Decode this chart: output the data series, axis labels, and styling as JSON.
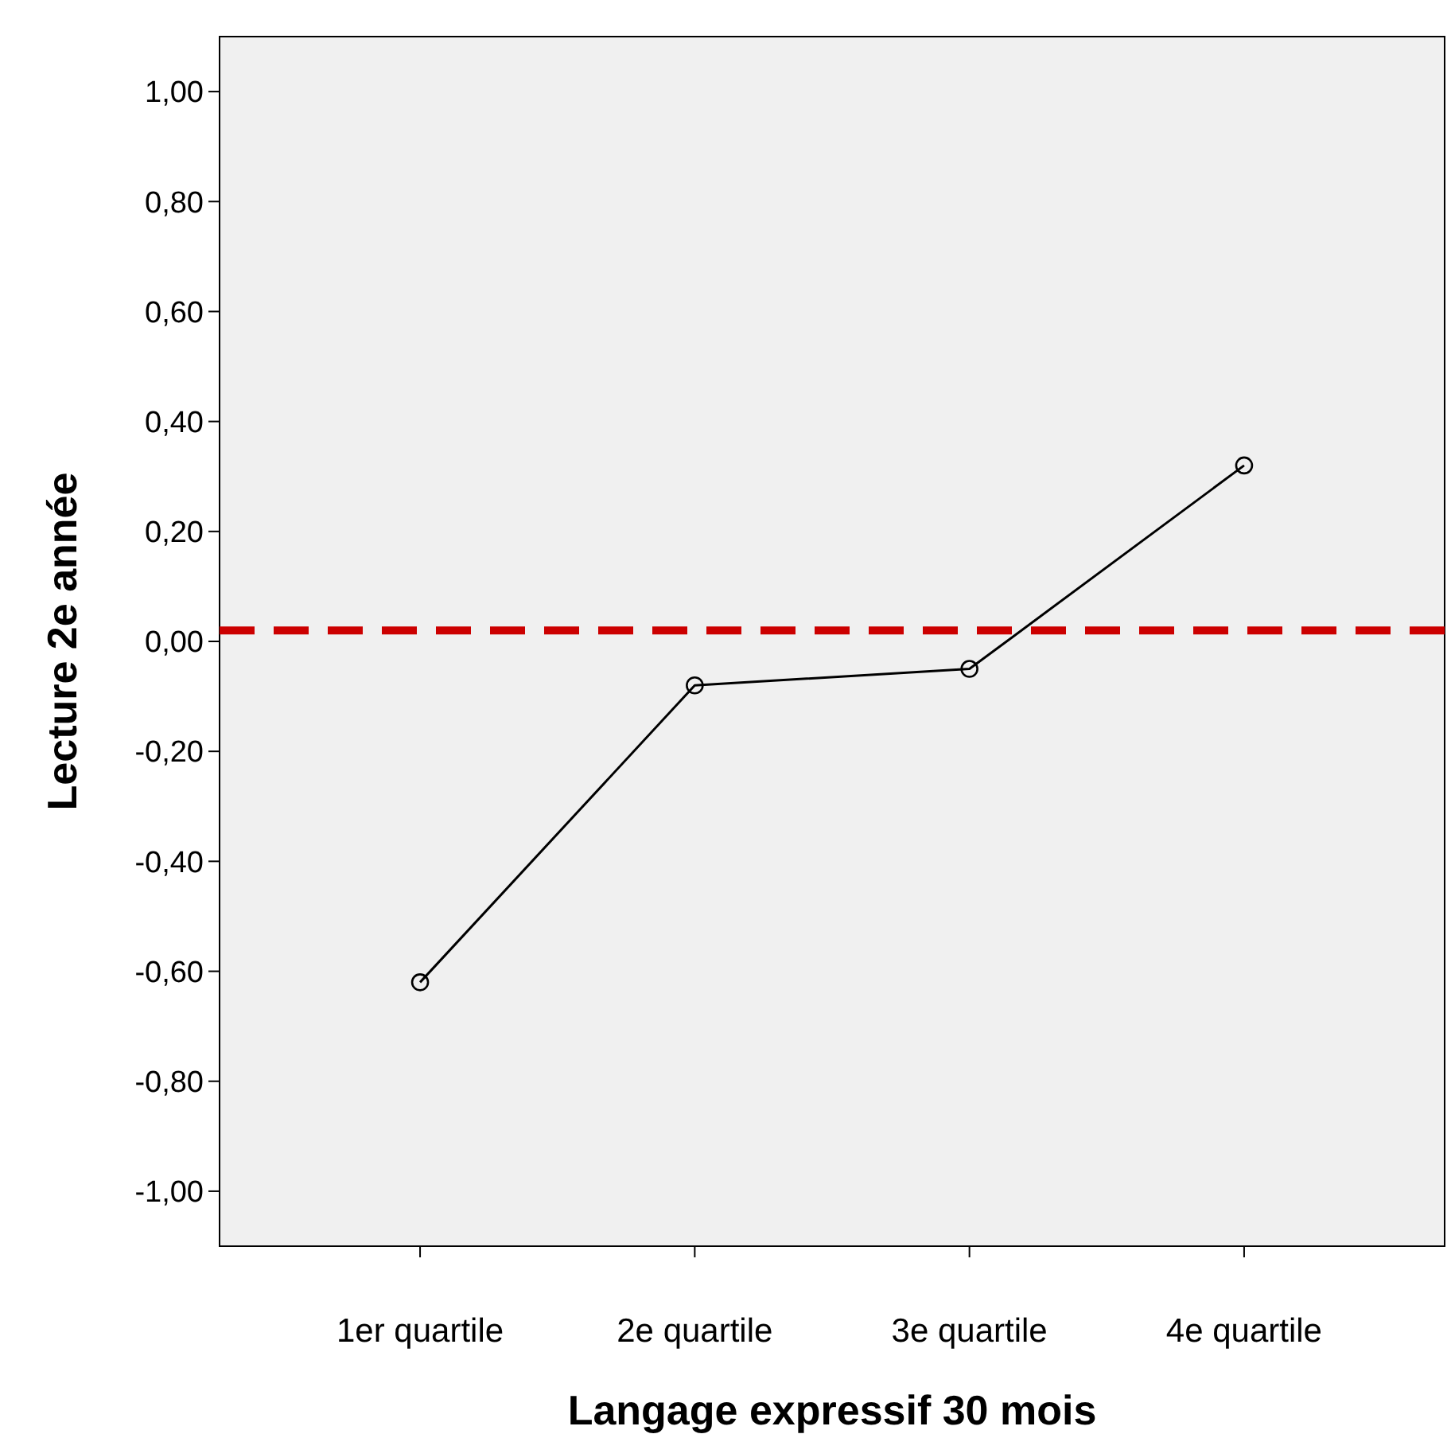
{
  "chart_data": {
    "type": "line",
    "xlabel": "Langage expressif 30 mois",
    "ylabel": "Lecture 2e année",
    "categories": [
      "1er quartile",
      "2e quartile",
      "3e quartile",
      "4e quartile"
    ],
    "series": [
      {
        "color": "#000000",
        "values": [
          -0.62,
          -0.08,
          -0.05,
          0.32
        ]
      }
    ],
    "ylim": [
      -1.1,
      1.1
    ],
    "yticks": [
      {
        "value": -1,
        "label": "-1,00"
      },
      {
        "value": -0.8,
        "label": "-0,80"
      },
      {
        "value": -0.6,
        "label": "-0,60"
      },
      {
        "value": -0.4,
        "label": "-0,40"
      },
      {
        "value": -0.2,
        "label": "-0,20"
      },
      {
        "value": 0,
        "label": "0,00"
      },
      {
        "value": 0.2,
        "label": "0,20"
      },
      {
        "value": 0.4,
        "label": "0,40"
      },
      {
        "value": 0.6,
        "label": "0,60"
      },
      {
        "value": 0.8,
        "label": "0,80"
      },
      {
        "value": 1,
        "label": "1,00"
      }
    ],
    "ref_lines": [
      {
        "axis": "y",
        "value": 0.02,
        "color": "#cc0000",
        "line_style": "dashed"
      }
    ],
    "marker": "circle",
    "line_style": "solid"
  }
}
